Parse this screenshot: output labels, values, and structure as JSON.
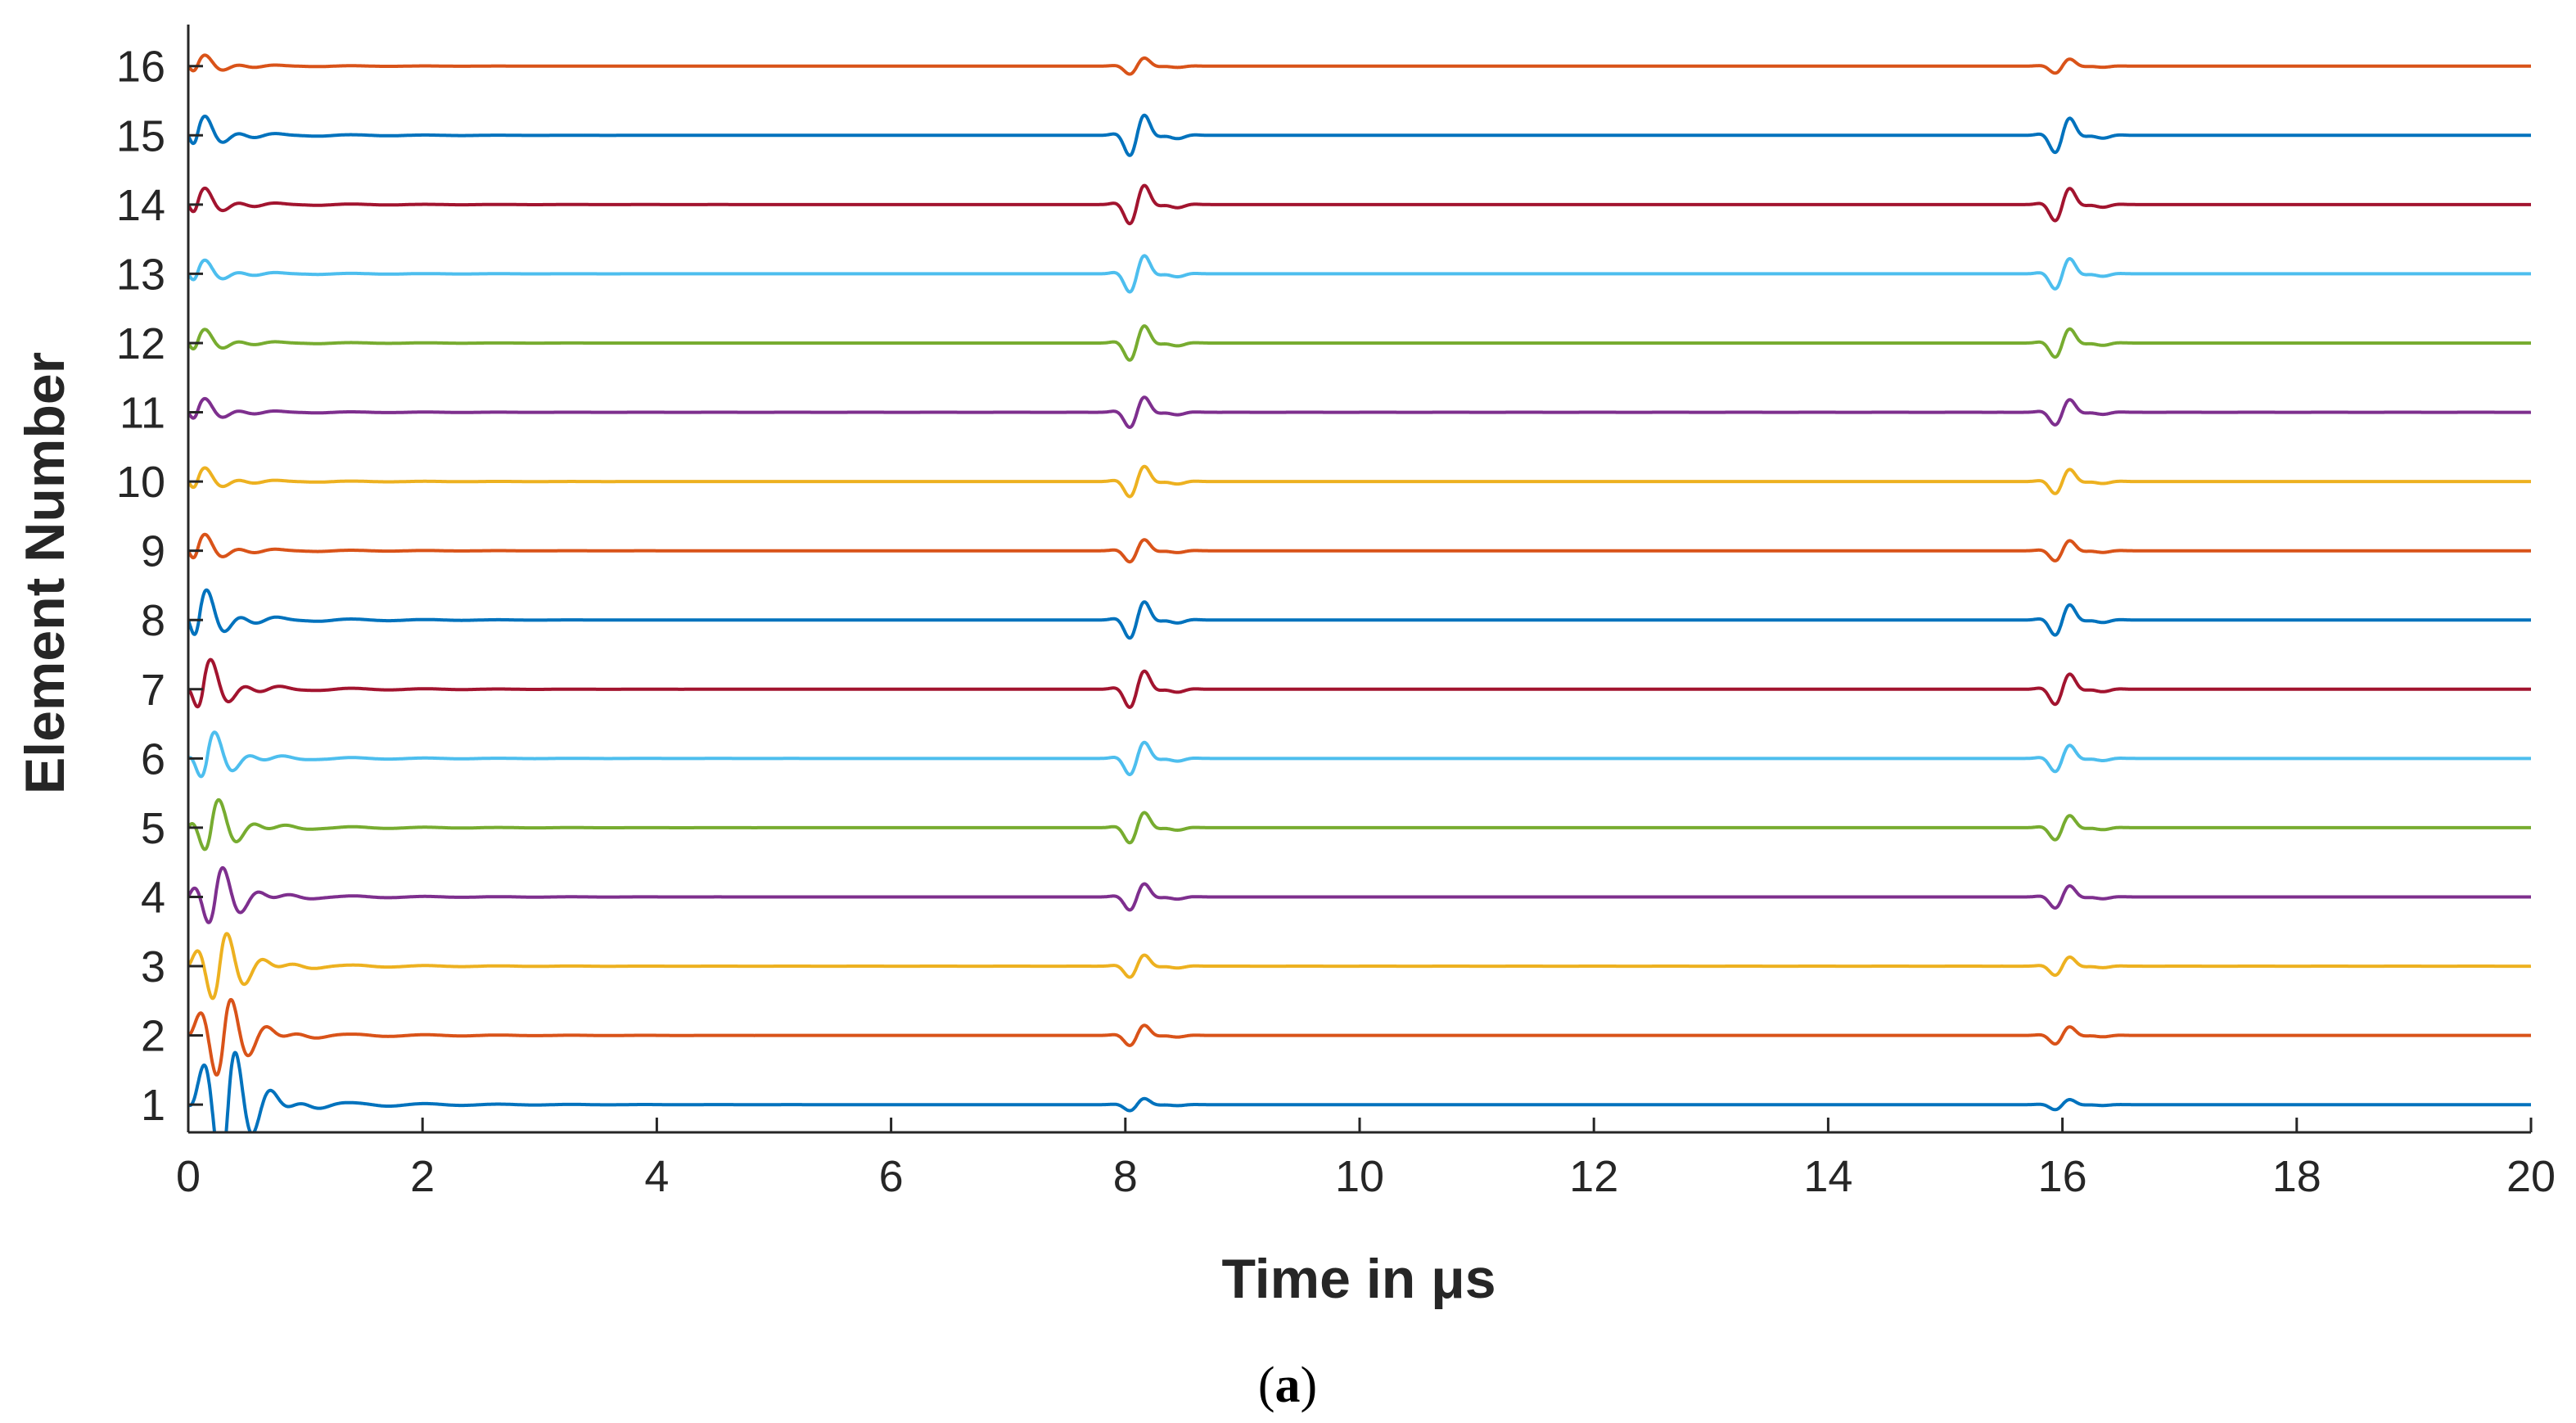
{
  "chart_data": {
    "type": "line",
    "xlabel": "Time in μs",
    "ylabel": "Element Number",
    "xlim": [
      0,
      20
    ],
    "ylim": [
      0.6,
      16.6
    ],
    "x_ticks": [
      0,
      2,
      4,
      6,
      8,
      10,
      12,
      14,
      16,
      18,
      20
    ],
    "y_ticks": [
      1,
      2,
      3,
      4,
      5,
      6,
      7,
      8,
      9,
      10,
      11,
      12,
      13,
      14,
      15,
      16
    ],
    "grid": false,
    "panel_label": {
      "open": "(",
      "letter": "a",
      "close": ")"
    },
    "echo_times_us": [
      8.1,
      16.0
    ],
    "series": [
      {
        "element": 1,
        "baseline": 1,
        "color": "#0072BD",
        "echo_amp": [
          0.12,
          0.1
        ],
        "initial_amp": 1.2
      },
      {
        "element": 2,
        "baseline": 2,
        "color": "#D95319",
        "echo_amp": [
          0.2,
          0.17
        ],
        "initial_amp": 0.8
      },
      {
        "element": 3,
        "baseline": 3,
        "color": "#EDB120",
        "echo_amp": [
          0.22,
          0.18
        ],
        "initial_amp": 0.7
      },
      {
        "element": 4,
        "baseline": 4,
        "color": "#7E2F8E",
        "echo_amp": [
          0.26,
          0.22
        ],
        "initial_amp": 0.6
      },
      {
        "element": 5,
        "baseline": 5,
        "color": "#77AC30",
        "echo_amp": [
          0.3,
          0.24
        ],
        "initial_amp": 0.55
      },
      {
        "element": 6,
        "baseline": 6,
        "color": "#4DBEEE",
        "echo_amp": [
          0.32,
          0.26
        ],
        "initial_amp": 0.5
      },
      {
        "element": 7,
        "baseline": 7,
        "color": "#A2142F",
        "echo_amp": [
          0.36,
          0.3
        ],
        "initial_amp": 0.55
      },
      {
        "element": 8,
        "baseline": 8,
        "color": "#0072BD",
        "echo_amp": [
          0.36,
          0.3
        ],
        "initial_amp": 0.55
      },
      {
        "element": 9,
        "baseline": 9,
        "color": "#D95319",
        "echo_amp": [
          0.22,
          0.2
        ],
        "initial_amp": 0.3
      },
      {
        "element": 10,
        "baseline": 10,
        "color": "#EDB120",
        "echo_amp": [
          0.3,
          0.24
        ],
        "initial_amp": 0.25
      },
      {
        "element": 11,
        "baseline": 11,
        "color": "#7E2F8E",
        "echo_amp": [
          0.3,
          0.25
        ],
        "initial_amp": 0.25
      },
      {
        "element": 12,
        "baseline": 12,
        "color": "#77AC30",
        "echo_amp": [
          0.34,
          0.28
        ],
        "initial_amp": 0.25
      },
      {
        "element": 13,
        "baseline": 13,
        "color": "#4DBEEE",
        "echo_amp": [
          0.36,
          0.3
        ],
        "initial_amp": 0.25
      },
      {
        "element": 14,
        "baseline": 14,
        "color": "#A2142F",
        "echo_amp": [
          0.38,
          0.32
        ],
        "initial_amp": 0.3
      },
      {
        "element": 15,
        "baseline": 15,
        "color": "#0072BD",
        "echo_amp": [
          0.4,
          0.34
        ],
        "initial_amp": 0.35
      },
      {
        "element": 16,
        "baseline": 16,
        "color": "#D95319",
        "echo_amp": [
          0.16,
          0.14
        ],
        "initial_amp": 0.2
      }
    ]
  }
}
